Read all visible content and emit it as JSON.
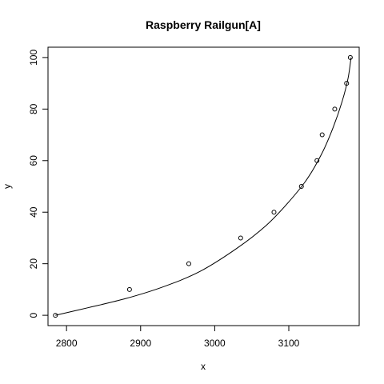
{
  "chart_data": {
    "type": "scatter",
    "title": "Raspberry Railgun[A]",
    "xlabel": "x",
    "ylabel": "y",
    "xlim": [
      2775,
      3195
    ],
    "ylim": [
      -4,
      104
    ],
    "x_ticks": [
      2800,
      2900,
      3000,
      3100
    ],
    "y_ticks": [
      0,
      20,
      40,
      60,
      80,
      100
    ],
    "grid": false,
    "series": [
      {
        "points": [
          {
            "x": 2785,
            "y": 0
          },
          {
            "x": 2885,
            "y": 10
          },
          {
            "x": 2965,
            "y": 20
          },
          {
            "x": 3035,
            "y": 30
          },
          {
            "x": 3080,
            "y": 40
          },
          {
            "x": 3117,
            "y": 50
          },
          {
            "x": 3138,
            "y": 60
          },
          {
            "x": 3145,
            "y": 70
          },
          {
            "x": 3162,
            "y": 80
          },
          {
            "x": 3178,
            "y": 90
          },
          {
            "x": 3183,
            "y": 100
          }
        ]
      }
    ],
    "fitted_curve": [
      {
        "x": 2785,
        "y": 0
      },
      {
        "x": 2830,
        "y": 3
      },
      {
        "x": 2880,
        "y": 6.5
      },
      {
        "x": 2930,
        "y": 11
      },
      {
        "x": 2980,
        "y": 17
      },
      {
        "x": 3030,
        "y": 26
      },
      {
        "x": 3070,
        "y": 35
      },
      {
        "x": 3100,
        "y": 44
      },
      {
        "x": 3125,
        "y": 53
      },
      {
        "x": 3145,
        "y": 63
      },
      {
        "x": 3160,
        "y": 73
      },
      {
        "x": 3172,
        "y": 83
      },
      {
        "x": 3180,
        "y": 92
      },
      {
        "x": 3184,
        "y": 100
      }
    ]
  }
}
